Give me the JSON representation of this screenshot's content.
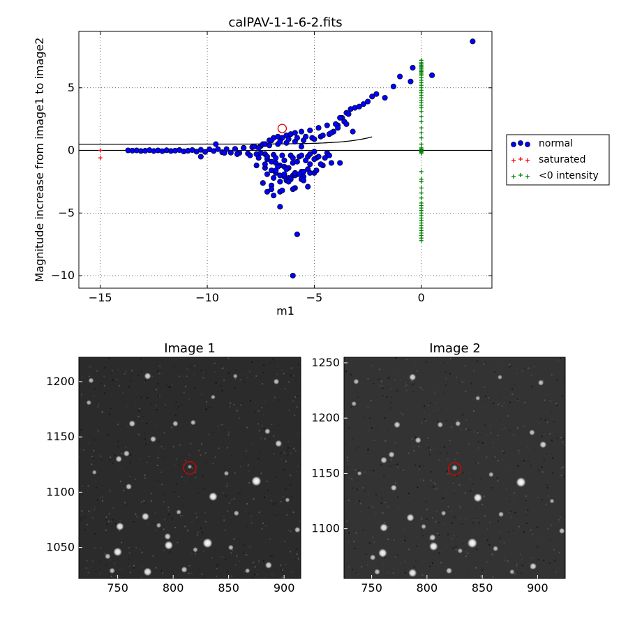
{
  "chart_data": [
    {
      "type": "scatter",
      "title": "calPAV-1-1-6-2.fits",
      "xlabel": "m1",
      "ylabel": "Magnitude increase from image1 to image2",
      "xlim": [
        -16,
        3.3
      ],
      "ylim": [
        -11,
        9.5
      ],
      "xticks": [
        -15,
        -10,
        -5,
        0
      ],
      "xtick_labels": [
        "−15",
        "−10",
        "−5",
        "0"
      ],
      "yticks": [
        -10,
        -5,
        0,
        5
      ],
      "ytick_labels": [
        "−10",
        "−5",
        "0",
        "5"
      ],
      "grid": true,
      "legend_placement": "outside-right",
      "legend": [
        "normal",
        "saturated",
        "<0 intensity"
      ],
      "highlighted_point": {
        "x": -6.5,
        "y": 1.75,
        "color": "#dd0000"
      },
      "series": [
        {
          "name": "normal",
          "marker": "circle",
          "color": "#0000ff",
          "x": [
            -13.7,
            -13.5,
            -13.3,
            -13.1,
            -12.9,
            -12.7,
            -12.5,
            -12.3,
            -12.1,
            -11.9,
            -11.7,
            -11.5,
            -11.3,
            -11.1,
            -10.9,
            -10.7,
            -10.5,
            -10.3,
            -10.1,
            -9.9,
            -9.7,
            -9.5,
            -9.3,
            -9.1,
            -8.9,
            -8.7,
            -8.5,
            -8.3,
            -8.1,
            -7.9,
            -7.7,
            -7.5,
            -7.3,
            -7.1,
            -6.9,
            -6.7,
            -6.5,
            -6.3,
            -6.1,
            -5.9,
            -5.7,
            -5.5,
            -5.3,
            -5.1,
            -4.9,
            -4.7,
            -4.5,
            -4.3,
            -4.1,
            -3.9,
            -3.7,
            -3.5,
            -3.3,
            -3.1,
            -2.9,
            -2.7,
            -2.5,
            -2.3,
            -2.1,
            -1.7,
            -1.3,
            -1.0,
            -0.4,
            -0.5,
            0.5,
            2.4,
            -9.6,
            -10.3,
            -9.2,
            -8.6,
            -8.3,
            -8.0,
            -7.8,
            -7.6,
            -7.4,
            -7.2,
            -7.1,
            -7.0,
            -6.9,
            -6.8,
            -6.7,
            -6.6,
            -6.5,
            -6.4,
            -6.3,
            -6.2,
            -6.1,
            -6.0,
            -5.9,
            -5.8,
            -5.6,
            -5.4,
            -5.2,
            -5.0,
            -4.8,
            -4.6,
            -4.4,
            -4.2,
            -4.0,
            -3.8,
            -3.6,
            -3.4,
            -7.6,
            -7.5,
            -7.3,
            -7.2,
            -7.0,
            -6.8,
            -6.6,
            -6.4,
            -6.2,
            -6.0,
            -5.8,
            -5.6,
            -5.4,
            -5.2,
            -5.0,
            -4.8,
            -4.6,
            -4.4,
            -4.2,
            -3.9,
            -3.5,
            -3.2,
            -7.3,
            -7.0,
            -6.8,
            -6.6,
            -6.4,
            -6.2,
            -6.0,
            -5.8,
            -5.6,
            -5.3,
            -5.0,
            -4.7,
            -6.9,
            -6.6,
            -6.3,
            -6.1,
            -5.9,
            -5.7,
            -5.5,
            -5.2,
            -4.9,
            -7.0,
            -6.6,
            -6.2,
            -5.9,
            -5.6,
            -5.3,
            -7.7,
            -7.3,
            -6.7,
            -6.3,
            -7.2,
            -6.9,
            -6.5,
            -6.0,
            -5.5,
            -7.4,
            -7.2,
            -6.8,
            -6.4,
            -5.9,
            -5.5,
            -6.0,
            -5.2,
            -7.0,
            -6.6,
            -5.8,
            -3.8,
            -4.3,
            -5.0,
            -5.6
          ],
          "y": [
            0.0,
            -0.02,
            0.0,
            -0.05,
            -0.03,
            0.02,
            -0.05,
            0.0,
            -0.06,
            0.01,
            -0.05,
            -0.02,
            0.03,
            -0.08,
            -0.03,
            0.03,
            -0.1,
            0.05,
            -0.12,
            0.08,
            -0.05,
            0.1,
            -0.15,
            0.1,
            -0.18,
            0.12,
            -0.2,
            0.2,
            -0.25,
            0.25,
            -0.3,
            0.35,
            -0.3,
            0.4,
            -0.35,
            0.5,
            -0.4,
            0.6,
            -0.4,
            0.7,
            -0.5,
            0.8,
            -0.5,
            1.0,
            -0.6,
            1.1,
            -0.6,
            1.3,
            1.5,
            2.0,
            2.6,
            3.0,
            3.3,
            3.4,
            3.5,
            3.7,
            3.9,
            4.3,
            4.5,
            4.2,
            5.1,
            5.9,
            6.6,
            5.5,
            6.0,
            8.7,
            0.5,
            -0.5,
            -0.2,
            -0.3,
            0.2,
            -0.4,
            0.3,
            -0.6,
            0.5,
            -0.7,
            0.8,
            -0.9,
            1.0,
            -1.0,
            1.1,
            -1.2,
            1.0,
            -1.3,
            1.2,
            -1.4,
            1.3,
            -1.0,
            1.4,
            -0.9,
            1.5,
            -0.8,
            1.6,
            -0.7,
            1.8,
            -1.2,
            2.0,
            -1.0,
            2.1,
            2.6,
            2.3,
            2.9,
            0.2,
            -0.2,
            0.5,
            -0.5,
            0.8,
            -0.6,
            0.7,
            -0.8,
            0.9,
            -0.6,
            1.0,
            -0.4,
            1.1,
            -0.3,
            0.9,
            -0.5,
            1.2,
            -0.2,
            1.4,
            1.8,
            2.1,
            1.5,
            -1.4,
            -1.6,
            -1.8,
            -2.0,
            -2.1,
            -2.2,
            -2.0,
            -1.9,
            -1.7,
            -1.5,
            -1.8,
            -1.1,
            -2.2,
            -2.5,
            -2.4,
            -2.3,
            -2.0,
            -1.9,
            -2.1,
            -1.8,
            -1.6,
            -2.8,
            -3.3,
            -2.5,
            -3.0,
            -2.3,
            -2.9,
            -1.2,
            -1.1,
            -1.3,
            -1.5,
            -3.3,
            -3.6,
            -3.2,
            -3.1,
            -2.4,
            -2.6,
            -1.9,
            -1.6,
            -1.9,
            -1.8,
            -1.7,
            -10.0,
            -1.1,
            -3.1,
            -4.5,
            -6.7,
            -1.0,
            -0.4,
            -0.1,
            0.3
          ]
        },
        {
          "name": "saturated",
          "marker": "plus",
          "color": "#ff0000",
          "x": [
            -15.0,
            -15.0
          ],
          "y": [
            0.0,
            -0.6
          ]
        },
        {
          "name": "<0 intensity",
          "marker": "plus",
          "color": "#008000",
          "x": [
            0,
            0,
            0,
            0,
            0,
            0,
            0,
            0,
            0,
            0,
            0,
            0,
            0,
            0,
            0,
            0,
            0,
            0,
            0,
            0,
            0,
            0,
            0,
            0,
            0,
            0,
            0,
            0,
            0,
            0,
            0,
            0,
            0,
            0,
            0,
            0,
            0,
            0,
            0,
            0,
            0,
            0,
            0,
            0,
            0,
            0,
            0,
            0,
            0,
            0,
            0,
            0,
            0,
            0,
            0,
            0,
            0,
            0,
            0,
            0,
            0,
            0
          ],
          "y": [
            7.2,
            7.0,
            6.9,
            6.8,
            6.7,
            6.6,
            6.5,
            6.4,
            6.3,
            6.2,
            6.1,
            6.0,
            5.8,
            5.6,
            5.4,
            5.2,
            5.0,
            4.8,
            4.6,
            4.4,
            4.2,
            4.0,
            3.8,
            3.6,
            3.4,
            3.1,
            2.7,
            2.3,
            1.8,
            1.4,
            1.0,
            0.5,
            0.1,
            -0.1,
            -1.7,
            -2.3,
            -2.5,
            -3.0,
            -3.4,
            -3.8,
            -4.2,
            -4.4,
            -4.6,
            -4.8,
            -5.0,
            -5.2,
            -5.4,
            -5.6,
            -5.8,
            -6.0,
            -6.2,
            -6.4,
            -6.6,
            -6.8,
            -7.0,
            -7.2,
            0.0,
            -0.05,
            0.05,
            -0.15,
            0.2,
            -0.25
          ]
        }
      ],
      "curves": [
        {
          "role": "upper-limit-curve",
          "color": "#000000",
          "offset": 0.5,
          "scale": 0.03,
          "rate": 0.8,
          "x_range": [
            -16,
            -2.3
          ]
        },
        {
          "role": "zero-line",
          "color": "#000000",
          "y": 0.0,
          "x_range": [
            -16,
            3.3
          ]
        }
      ]
    },
    {
      "type": "image",
      "title": "Image 1",
      "xlim": [
        715,
        915
      ],
      "ylim": [
        1022,
        1222
      ],
      "xticks": [
        750,
        800,
        850,
        900
      ],
      "yticks": [
        1050,
        1100,
        1150,
        1200
      ],
      "marker": {
        "x": 815,
        "y": 1122,
        "color": "#dd0000"
      },
      "background": "#2b2b2b",
      "stars": [
        {
          "x": 875,
          "y": 1110,
          "b": 1.0
        },
        {
          "x": 831,
          "y": 1054,
          "b": 1.0
        },
        {
          "x": 836,
          "y": 1096,
          "b": 0.85
        },
        {
          "x": 796,
          "y": 1052,
          "b": 0.85
        },
        {
          "x": 777,
          "y": 1028,
          "b": 0.8
        },
        {
          "x": 752,
          "y": 1069,
          "b": 0.75
        },
        {
          "x": 750,
          "y": 1046,
          "b": 0.85
        },
        {
          "x": 775,
          "y": 1078,
          "b": 0.7
        },
        {
          "x": 795,
          "y": 1060,
          "b": 0.55
        },
        {
          "x": 895,
          "y": 1144,
          "b": 0.6
        },
        {
          "x": 886,
          "y": 1034,
          "b": 0.6
        },
        {
          "x": 777,
          "y": 1205,
          "b": 0.6
        },
        {
          "x": 751,
          "y": 1130,
          "b": 0.55
        },
        {
          "x": 763,
          "y": 1162,
          "b": 0.55
        },
        {
          "x": 782,
          "y": 1148,
          "b": 0.5
        },
        {
          "x": 758,
          "y": 1135,
          "b": 0.5
        },
        {
          "x": 810,
          "y": 1030,
          "b": 0.5
        },
        {
          "x": 802,
          "y": 1162,
          "b": 0.45
        },
        {
          "x": 893,
          "y": 1200,
          "b": 0.45
        },
        {
          "x": 885,
          "y": 1155,
          "b": 0.45
        },
        {
          "x": 760,
          "y": 1105,
          "b": 0.5
        },
        {
          "x": 726,
          "y": 1201,
          "b": 0.4
        },
        {
          "x": 745,
          "y": 1029,
          "b": 0.45
        },
        {
          "x": 741,
          "y": 1042,
          "b": 0.45
        },
        {
          "x": 912,
          "y": 1066,
          "b": 0.45
        },
        {
          "x": 852,
          "y": 1050,
          "b": 0.4
        },
        {
          "x": 857,
          "y": 1081,
          "b": 0.4
        },
        {
          "x": 818,
          "y": 1163,
          "b": 0.4
        },
        {
          "x": 848,
          "y": 1117,
          "b": 0.35
        },
        {
          "x": 820,
          "y": 1048,
          "b": 0.35
        },
        {
          "x": 724,
          "y": 1181,
          "b": 0.35
        },
        {
          "x": 787,
          "y": 1070,
          "b": 0.35
        },
        {
          "x": 805,
          "y": 1082,
          "b": 0.35
        },
        {
          "x": 867,
          "y": 1029,
          "b": 0.35
        },
        {
          "x": 729,
          "y": 1118,
          "b": 0.3
        },
        {
          "x": 856,
          "y": 1205,
          "b": 0.3
        },
        {
          "x": 903,
          "y": 1093,
          "b": 0.3
        },
        {
          "x": 836,
          "y": 1186,
          "b": 0.3
        },
        {
          "x": 815,
          "y": 1123,
          "b": 0.25
        }
      ]
    },
    {
      "type": "image",
      "title": "Image 2",
      "xlim": [
        725,
        925
      ],
      "ylim": [
        1055,
        1255
      ],
      "xticks": [
        750,
        800,
        850,
        900
      ],
      "yticks": [
        1100,
        1150,
        1200,
        1250
      ],
      "marker": {
        "x": 825,
        "y": 1154,
        "color": "#dd0000"
      },
      "background": "#333333",
      "stars": [
        {
          "x": 885,
          "y": 1142,
          "b": 1.0
        },
        {
          "x": 841,
          "y": 1087,
          "b": 1.0
        },
        {
          "x": 846,
          "y": 1128,
          "b": 0.85
        },
        {
          "x": 806,
          "y": 1084,
          "b": 0.85
        },
        {
          "x": 787,
          "y": 1060,
          "b": 0.8
        },
        {
          "x": 761,
          "y": 1101,
          "b": 0.75
        },
        {
          "x": 760,
          "y": 1078,
          "b": 0.85
        },
        {
          "x": 785,
          "y": 1110,
          "b": 0.7
        },
        {
          "x": 805,
          "y": 1092,
          "b": 0.55
        },
        {
          "x": 905,
          "y": 1176,
          "b": 0.6
        },
        {
          "x": 896,
          "y": 1066,
          "b": 0.6
        },
        {
          "x": 787,
          "y": 1237,
          "b": 0.6
        },
        {
          "x": 761,
          "y": 1162,
          "b": 0.55
        },
        {
          "x": 773,
          "y": 1194,
          "b": 0.55
        },
        {
          "x": 792,
          "y": 1180,
          "b": 0.5
        },
        {
          "x": 768,
          "y": 1167,
          "b": 0.5
        },
        {
          "x": 820,
          "y": 1062,
          "b": 0.5
        },
        {
          "x": 812,
          "y": 1194,
          "b": 0.45
        },
        {
          "x": 903,
          "y": 1232,
          "b": 0.45
        },
        {
          "x": 895,
          "y": 1187,
          "b": 0.45
        },
        {
          "x": 770,
          "y": 1137,
          "b": 0.5
        },
        {
          "x": 736,
          "y": 1233,
          "b": 0.4
        },
        {
          "x": 755,
          "y": 1061,
          "b": 0.45
        },
        {
          "x": 751,
          "y": 1074,
          "b": 0.45
        },
        {
          "x": 922,
          "y": 1098,
          "b": 0.45
        },
        {
          "x": 862,
          "y": 1082,
          "b": 0.4
        },
        {
          "x": 867,
          "y": 1113,
          "b": 0.4
        },
        {
          "x": 828,
          "y": 1195,
          "b": 0.4
        },
        {
          "x": 858,
          "y": 1149,
          "b": 0.35
        },
        {
          "x": 830,
          "y": 1080,
          "b": 0.35
        },
        {
          "x": 734,
          "y": 1213,
          "b": 0.35
        },
        {
          "x": 797,
          "y": 1102,
          "b": 0.35
        },
        {
          "x": 815,
          "y": 1114,
          "b": 0.35
        },
        {
          "x": 877,
          "y": 1061,
          "b": 0.35
        },
        {
          "x": 739,
          "y": 1150,
          "b": 0.3
        },
        {
          "x": 866,
          "y": 1237,
          "b": 0.3
        },
        {
          "x": 913,
          "y": 1125,
          "b": 0.3
        },
        {
          "x": 846,
          "y": 1218,
          "b": 0.3
        },
        {
          "x": 825,
          "y": 1155,
          "b": 0.45
        }
      ]
    }
  ]
}
